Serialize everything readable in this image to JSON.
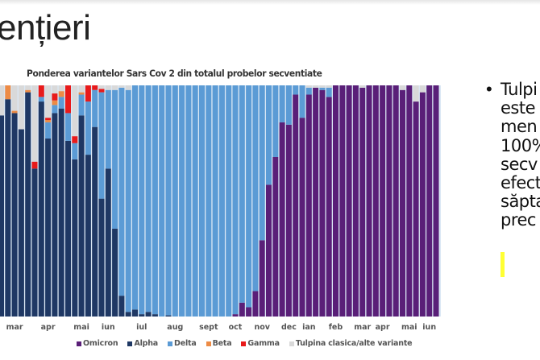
{
  "slide": {
    "title_fragment": "ențieri",
    "bullet_lines": [
      "Tulpi",
      "este",
      "men",
      "100%",
      "secv",
      "efect",
      "săpta",
      "prec"
    ]
  },
  "chart_data": {
    "type": "bar",
    "stacked": true,
    "normalized": true,
    "title": "Ponderea variantelor Sars Cov 2 din totalul probelor secventiate",
    "xlabel": "",
    "ylabel": "",
    "ylim": [
      0,
      1
    ],
    "grid": false,
    "legend_position": "bottom",
    "colors": {
      "Omicron": "#5a1f78",
      "Alpha": "#1f3864",
      "Delta": "#5b9bd5",
      "Beta": "#ed8b45",
      "Gamma": "#e81a1a",
      "Tulpina clasica/alte variante": "#d9d9d9"
    },
    "month_ticks": [
      {
        "label": "mar",
        "bar": 2
      },
      {
        "label": "apr",
        "bar": 7
      },
      {
        "label": "mai",
        "bar": 12
      },
      {
        "label": "iun",
        "bar": 16
      },
      {
        "label": "iul",
        "bar": 21
      },
      {
        "label": "aug",
        "bar": 26
      },
      {
        "label": "sept",
        "bar": 31
      },
      {
        "label": "oct",
        "bar": 35
      },
      {
        "label": "nov",
        "bar": 39
      },
      {
        "label": "dec",
        "bar": 43
      },
      {
        "label": "ian",
        "bar": 46
      },
      {
        "label": "feb",
        "bar": 50
      },
      {
        "label": "mar",
        "bar": 54
      },
      {
        "label": "apr",
        "bar": 57
      },
      {
        "label": "mai",
        "bar": 61
      },
      {
        "label": "iun",
        "bar": 64
      }
    ],
    "series_order": [
      "Omicron",
      "Alpha",
      "Delta",
      "Beta",
      "Gamma",
      "Tulpina clasica/alte variante"
    ],
    "bars": [
      {
        "Alpha": 0.87,
        "Other": 0.13
      },
      {
        "Alpha": 0.94,
        "Beta": 0.06
      },
      {
        "Alpha": 0.88,
        "Beta": 0.01,
        "Other": 0.11
      },
      {
        "Alpha": 0.81,
        "Other": 0.19
      },
      {
        "Alpha": 0.97,
        "Beta": 0.01,
        "Other": 0.02
      },
      {
        "Alpha": 0.64,
        "Gamma": 0.03,
        "Other": 0.33
      },
      {
        "Alpha": 0.93,
        "Delta": 0.02,
        "Gamma": 0.05
      },
      {
        "Alpha": 0.77,
        "Delta": 0.07,
        "Beta": 0.01,
        "Gamma": 0.01,
        "Other": 0.14
      },
      {
        "Alpha": 0.88,
        "Delta": 0.035,
        "Beta": 0.02,
        "Gamma": 0.03,
        "Other": 0.035
      },
      {
        "Alpha": 0.9,
        "Delta": 0.05,
        "Beta": 0.025,
        "Other": 0.025
      },
      {
        "Alpha": 0.76,
        "Delta": 0.12,
        "Gamma": 0.12
      },
      {
        "Alpha": 0.68,
        "Delta": 0.07,
        "Gamma": 0.03,
        "Other": 0.22
      },
      {
        "Alpha": 0.87,
        "Delta": 0.09,
        "Beta": 0.01,
        "Other": 0.03
      },
      {
        "Alpha": 0.7,
        "Delta": 0.23,
        "Gamma": 0.07
      },
      {
        "Alpha": 0.82,
        "Delta": 0.16,
        "Gamma": 0.02
      },
      {
        "Alpha": 0.51,
        "Delta": 0.46,
        "Gamma": 0.015,
        "Other": 0.015
      },
      {
        "Alpha": 0.64,
        "Delta": 0.34,
        "Other": 0.02
      },
      {
        "Alpha": 0.38,
        "Delta": 0.6,
        "Other": 0.02
      },
      {
        "Alpha": 0.09,
        "Delta": 0.9,
        "Other": 0.01
      },
      {
        "Alpha": 0.02,
        "Delta": 0.96,
        "Other": 0.02
      },
      {
        "Alpha": 0.03,
        "Delta": 0.97
      },
      {
        "Alpha": 0.01,
        "Delta": 0.99
      },
      {
        "Alpha": 0.02,
        "Delta": 0.98
      },
      {
        "Alpha": 0.01,
        "Delta": 0.99
      },
      {
        "Delta": 1.0
      },
      {
        "Alpha": 0.005,
        "Delta": 0.995
      },
      {
        "Delta": 1.0
      },
      {
        "Delta": 1.0
      },
      {
        "Delta": 1.0
      },
      {
        "Delta": 1.0
      },
      {
        "Delta": 1.0
      },
      {
        "Delta": 1.0
      },
      {
        "Delta": 1.0
      },
      {
        "Delta": 1.0
      },
      {
        "Delta": 1.0
      },
      {
        "Omicron": 0.01,
        "Delta": 0.99
      },
      {
        "Omicron": 0.06,
        "Delta": 0.94
      },
      {
        "Omicron": 0.04,
        "Delta": 0.96
      },
      {
        "Omicron": 0.11,
        "Delta": 0.89
      },
      {
        "Omicron": 0.33,
        "Delta": 0.67
      },
      {
        "Omicron": 0.57,
        "Delta": 0.43
      },
      {
        "Omicron": 0.69,
        "Delta": 0.31
      },
      {
        "Omicron": 0.84,
        "Delta": 0.16
      },
      {
        "Omicron": 0.83,
        "Delta": 0.17
      },
      {
        "Omicron": 0.96,
        "Delta": 0.04
      },
      {
        "Omicron": 0.86,
        "Delta": 0.14
      },
      {
        "Omicron": 0.96,
        "Delta": 0.03,
        "Other": 0.01
      },
      {
        "Omicron": 0.99,
        "Other": 0.01
      },
      {
        "Omicron": 0.98,
        "Delta": 0.01,
        "Other": 0.01
      },
      {
        "Omicron": 0.95,
        "Delta": 0.04,
        "Other": 0.01
      },
      {
        "Omicron": 1.0
      },
      {
        "Omicron": 1.0
      },
      {
        "Omicron": 1.0
      },
      {
        "Omicron": 1.0
      },
      {
        "Omicron": 0.99,
        "Other": 0.01
      },
      {
        "Omicron": 1.0
      },
      {
        "Omicron": 1.0
      },
      {
        "Omicron": 1.0
      },
      {
        "Omicron": 1.0
      },
      {
        "Omicron": 1.0
      },
      {
        "Omicron": 0.98,
        "Other": 0.02
      },
      {
        "Omicron": 1.0
      },
      {
        "Omicron": 0.93,
        "Other": 0.07
      },
      {
        "Omicron": 0.97,
        "Other": 0.03
      },
      {
        "Omicron": 1.0
      },
      {
        "Omicron": 1.0
      }
    ]
  },
  "legend": [
    {
      "label": "Omicron",
      "color": "#5a1f78"
    },
    {
      "label": "Alpha",
      "color": "#1f3864"
    },
    {
      "label": "Delta",
      "color": "#5b9bd5"
    },
    {
      "label": "Beta",
      "color": "#ed8b45"
    },
    {
      "label": "Gamma",
      "color": "#e81a1a"
    },
    {
      "label": "Tulpina clasica/alte variante",
      "color": "#d9d9d9"
    }
  ]
}
